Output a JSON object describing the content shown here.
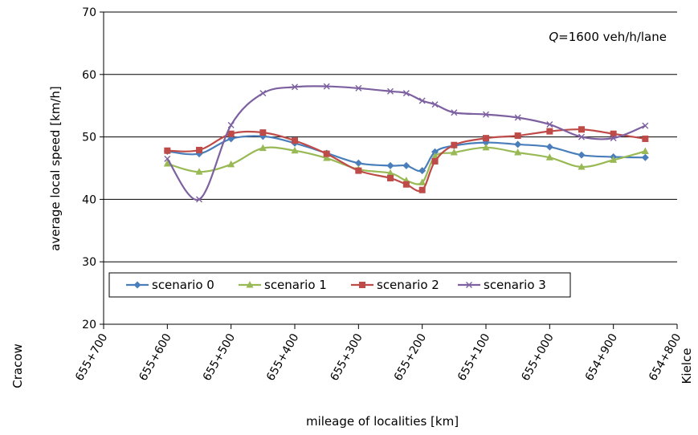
{
  "chart_data": {
    "type": "line",
    "xlabel": "mileage of localities [km]",
    "ylabel": "average local speed [km/h]",
    "ylim": [
      20,
      70
    ],
    "yticks": [
      20,
      30,
      40,
      50,
      60,
      70
    ],
    "xlim": [
      0,
      900
    ],
    "xtick_labels": [
      "655+700",
      "655+600",
      "655+500",
      "655+400",
      "655+300",
      "655+200",
      "655+100",
      "655+000",
      "654+900",
      "654+800"
    ],
    "end_labels": {
      "left": "Cracow",
      "right": "Kielce"
    },
    "annotation": {
      "q_symbol": "Q",
      "text": "=1600 veh/h/lane"
    },
    "grid": "horizontal",
    "legend_position": "bottom-left",
    "series": [
      {
        "name": "scenario 0",
        "color": "#4a7ebb",
        "marker": "diamond",
        "x": [
          100,
          150,
          200,
          250,
          300,
          350,
          400,
          450,
          475,
          500,
          520,
          550,
          600,
          650,
          700,
          750,
          800,
          850
        ],
        "values": [
          47.7,
          47.3,
          49.7,
          50.1,
          49.0,
          47.4,
          45.8,
          45.4,
          45.4,
          44.6,
          47.6,
          48.6,
          49.1,
          48.8,
          48.4,
          47.1,
          46.8,
          46.7
        ]
      },
      {
        "name": "scenario 1",
        "color": "#98b954",
        "marker": "triangle",
        "x": [
          100,
          150,
          200,
          250,
          300,
          350,
          400,
          450,
          475,
          500,
          520,
          550,
          600,
          650,
          700,
          750,
          800,
          850
        ],
        "values": [
          45.7,
          44.4,
          45.6,
          48.2,
          47.8,
          46.6,
          44.8,
          44.2,
          43.0,
          42.7,
          46.9,
          47.5,
          48.3,
          47.5,
          46.7,
          45.2,
          46.3,
          47.7
        ]
      },
      {
        "name": "scenario 2",
        "color": "#be4b48",
        "marker": "square",
        "x": [
          100,
          150,
          200,
          250,
          300,
          350,
          400,
          450,
          475,
          500,
          520,
          550,
          600,
          650,
          700,
          750,
          800,
          850
        ],
        "values": [
          47.8,
          47.9,
          50.5,
          50.7,
          49.4,
          47.3,
          44.6,
          43.4,
          42.4,
          41.5,
          46.1,
          48.7,
          49.8,
          50.2,
          50.9,
          51.2,
          50.5,
          49.7
        ]
      },
      {
        "name": "scenario 3",
        "color": "#7d60a0",
        "marker": "x",
        "x": [
          100,
          150,
          200,
          250,
          300,
          350,
          400,
          450,
          475,
          500,
          520,
          550,
          600,
          650,
          700,
          750,
          800,
          850
        ],
        "values": [
          46.5,
          40.0,
          51.9,
          57.0,
          58.0,
          58.1,
          57.8,
          57.3,
          57.0,
          55.8,
          55.2,
          53.9,
          53.6,
          53.1,
          52.0,
          50.0,
          49.8,
          51.8
        ]
      }
    ]
  }
}
